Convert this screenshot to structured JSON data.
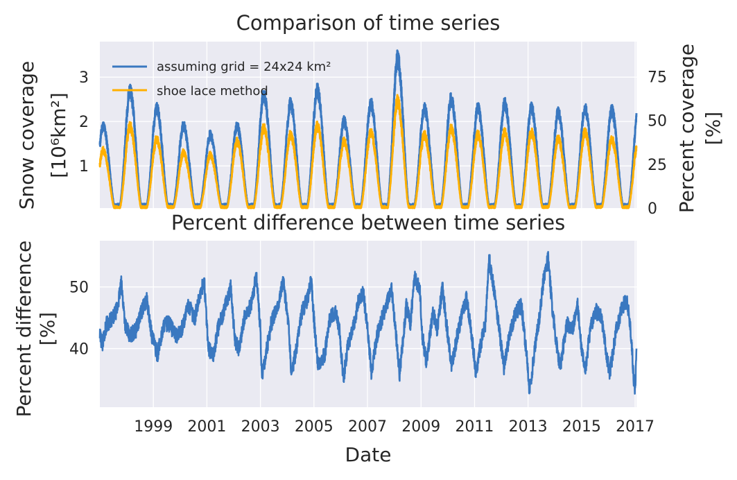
{
  "colors": {
    "background": "#eaeaf2",
    "grid": "#ffffff",
    "series_blue": "#3a78c0",
    "series_orange": "#ffb000",
    "text": "#262626"
  },
  "chart_data": [
    {
      "type": "line",
      "title": "Comparison of time series",
      "ylabel": "Snow coverage",
      "ylabel_unit": "[10⁶km²]",
      "ylabel_right": "Percent coverage",
      "ylabel_right_unit": "[%]",
      "ylim": [
        0.05,
        3.8
      ],
      "ylim_right": [
        0,
        95
      ],
      "yticks": [
        1,
        2,
        3
      ],
      "yticks_right": [
        0,
        25,
        50,
        75
      ],
      "xlim": [
        1997.0,
        2017.05
      ],
      "grid": true,
      "legend_position": "top-left",
      "series": [
        {
          "name": "assuming grid = 24x24 km²",
          "color": "#3a78c0",
          "yearly_peak": [
            {
              "year": 1997,
              "value": 1.9
            },
            {
              "year": 1998,
              "value": 2.7
            },
            {
              "year": 1999,
              "value": 2.3
            },
            {
              "year": 2000,
              "value": 1.9
            },
            {
              "year": 2001,
              "value": 1.7
            },
            {
              "year": 2002,
              "value": 1.9
            },
            {
              "year": 2003,
              "value": 2.6
            },
            {
              "year": 2004,
              "value": 2.4
            },
            {
              "year": 2005,
              "value": 2.7
            },
            {
              "year": 2006,
              "value": 2.0
            },
            {
              "year": 2007,
              "value": 2.4
            },
            {
              "year": 2008,
              "value": 3.4
            },
            {
              "year": 2009,
              "value": 2.3
            },
            {
              "year": 2010,
              "value": 2.5
            },
            {
              "year": 2011,
              "value": 2.3
            },
            {
              "year": 2012,
              "value": 2.4
            },
            {
              "year": 2013,
              "value": 2.3
            },
            {
              "year": 2014,
              "value": 2.2
            },
            {
              "year": 2015,
              "value": 2.3
            },
            {
              "year": 2016,
              "value": 2.25
            },
            {
              "year": 2017,
              "value": 2.3
            }
          ],
          "yearly_min": 0.1
        },
        {
          "name": "shoe lace method",
          "color": "#ffb000",
          "yearly_peak": [
            {
              "year": 1997,
              "value": 1.35
            },
            {
              "year": 1998,
              "value": 1.9
            },
            {
              "year": 1999,
              "value": 1.6
            },
            {
              "year": 2000,
              "value": 1.3
            },
            {
              "year": 2001,
              "value": 1.25
            },
            {
              "year": 2002,
              "value": 1.55
            },
            {
              "year": 2003,
              "value": 1.85
            },
            {
              "year": 2004,
              "value": 1.7
            },
            {
              "year": 2005,
              "value": 1.9
            },
            {
              "year": 2006,
              "value": 1.55
            },
            {
              "year": 2007,
              "value": 1.75
            },
            {
              "year": 2008,
              "value": 2.45
            },
            {
              "year": 2009,
              "value": 1.7
            },
            {
              "year": 2010,
              "value": 1.85
            },
            {
              "year": 2011,
              "value": 1.7
            },
            {
              "year": 2012,
              "value": 1.75
            },
            {
              "year": 2013,
              "value": 1.75
            },
            {
              "year": 2014,
              "value": 1.6
            },
            {
              "year": 2015,
              "value": 1.75
            },
            {
              "year": 2016,
              "value": 1.6
            },
            {
              "year": 2017,
              "value": 1.6
            }
          ],
          "yearly_min": 0.05
        }
      ],
      "legend": [
        "assuming grid = 24x24 km²",
        "shoe lace method"
      ]
    },
    {
      "type": "line",
      "title": "Percent difference between time series",
      "ylabel": "Percent difference",
      "ylabel_unit": "[%]",
      "xlabel": "Date",
      "ylim": [
        30.5,
        57.5
      ],
      "yticks": [
        40,
        50
      ],
      "xlim": [
        1997.0,
        2017.05
      ],
      "xticks": [
        "1999",
        "2001",
        "2003",
        "2005",
        "2007",
        "2009",
        "2011",
        "2013",
        "2015",
        "2017"
      ],
      "grid": true,
      "series": [
        {
          "color": "#3a78c0",
          "points": [
            [
              1997.0,
              42
            ],
            [
              1997.1,
              41
            ],
            [
              1997.25,
              44
            ],
            [
              1997.5,
              45
            ],
            [
              1997.65,
              46.5
            ],
            [
              1997.8,
              50.5
            ],
            [
              1997.95,
              44
            ],
            [
              1998.1,
              42
            ],
            [
              1998.35,
              43
            ],
            [
              1998.55,
              46
            ],
            [
              1998.75,
              48
            ],
            [
              1998.95,
              42
            ],
            [
              1999.15,
              39
            ],
            [
              1999.4,
              44
            ],
            [
              1999.6,
              44
            ],
            [
              1999.85,
              42
            ],
            [
              2000.05,
              43
            ],
            [
              2000.3,
              47
            ],
            [
              2000.55,
              45
            ],
            [
              2000.7,
              48
            ],
            [
              2000.9,
              51
            ],
            [
              2001.05,
              40
            ],
            [
              2001.25,
              39
            ],
            [
              2001.4,
              43
            ],
            [
              2001.7,
              47
            ],
            [
              2001.9,
              50
            ],
            [
              2002.05,
              41
            ],
            [
              2002.2,
              40
            ],
            [
              2002.4,
              45
            ],
            [
              2002.65,
              47
            ],
            [
              2002.85,
              52
            ],
            [
              2003.0,
              43
            ],
            [
              2003.05,
              35.5
            ],
            [
              2003.2,
              39
            ],
            [
              2003.4,
              44
            ],
            [
              2003.65,
              47
            ],
            [
              2003.85,
              51
            ],
            [
              2004.05,
              44
            ],
            [
              2004.15,
              36
            ],
            [
              2004.35,
              40
            ],
            [
              2004.55,
              46
            ],
            [
              2004.75,
              48
            ],
            [
              2004.9,
              51
            ],
            [
              2005.05,
              42
            ],
            [
              2005.15,
              37.5
            ],
            [
              2005.4,
              39
            ],
            [
              2005.6,
              45
            ],
            [
              2005.8,
              46
            ],
            [
              2005.95,
              43
            ],
            [
              2006.1,
              35
            ],
            [
              2006.25,
              40
            ],
            [
              2006.45,
              43
            ],
            [
              2006.65,
              47.5
            ],
            [
              2006.85,
              49
            ],
            [
              2007.05,
              41
            ],
            [
              2007.15,
              36
            ],
            [
              2007.35,
              42
            ],
            [
              2007.55,
              45
            ],
            [
              2007.7,
              47
            ],
            [
              2007.9,
              49.5
            ],
            [
              2008.05,
              43
            ],
            [
              2008.2,
              36
            ],
            [
              2008.45,
              47
            ],
            [
              2008.6,
              44
            ],
            [
              2008.75,
              51.5
            ],
            [
              2008.95,
              50
            ],
            [
              2009.05,
              42
            ],
            [
              2009.2,
              38
            ],
            [
              2009.45,
              46
            ],
            [
              2009.6,
              43
            ],
            [
              2009.8,
              50
            ],
            [
              2009.95,
              44
            ],
            [
              2010.15,
              37
            ],
            [
              2010.35,
              42
            ],
            [
              2010.55,
              46
            ],
            [
              2010.7,
              48
            ],
            [
              2010.85,
              44
            ],
            [
              2011.05,
              36
            ],
            [
              2011.2,
              40
            ],
            [
              2011.4,
              44
            ],
            [
              2011.55,
              54.5
            ],
            [
              2011.75,
              49
            ],
            [
              2011.95,
              42
            ],
            [
              2012.1,
              37
            ],
            [
              2012.3,
              42
            ],
            [
              2012.55,
              46
            ],
            [
              2012.75,
              47
            ],
            [
              2012.95,
              39
            ],
            [
              2013.05,
              33
            ],
            [
              2013.25,
              40
            ],
            [
              2013.45,
              46
            ],
            [
              2013.6,
              52
            ],
            [
              2013.75,
              54.5
            ],
            [
              2013.9,
              47
            ],
            [
              2014.05,
              41
            ],
            [
              2014.2,
              37
            ],
            [
              2014.45,
              44
            ],
            [
              2014.65,
              43
            ],
            [
              2014.85,
              47
            ],
            [
              2015.0,
              40
            ],
            [
              2015.15,
              37
            ],
            [
              2015.35,
              44
            ],
            [
              2015.55,
              46
            ],
            [
              2015.75,
              45
            ],
            [
              2015.9,
              40
            ],
            [
              2016.05,
              36
            ],
            [
              2016.3,
              43
            ],
            [
              2016.5,
              46.5
            ],
            [
              2016.7,
              48
            ],
            [
              2016.85,
              42
            ],
            [
              2016.95,
              35
            ],
            [
              2017.0,
              33
            ],
            [
              2017.05,
              40
            ]
          ]
        }
      ]
    }
  ]
}
